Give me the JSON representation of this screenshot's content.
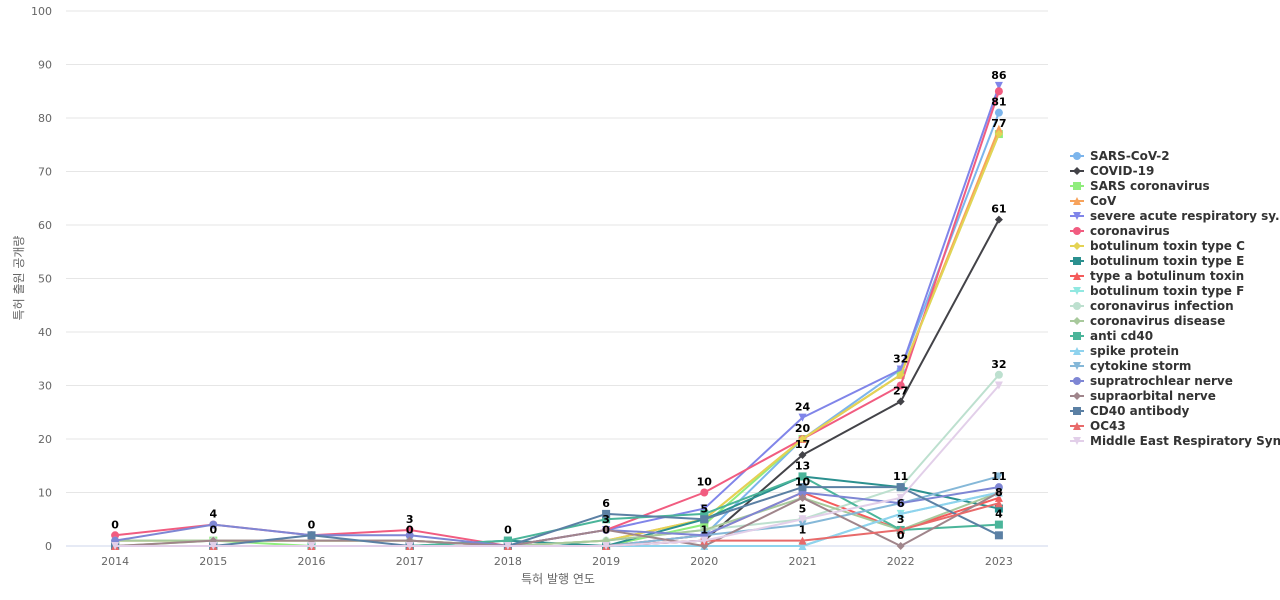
{
  "chart_data": {
    "type": "line",
    "xlabel": "특허 발행 연도",
    "ylabel": "특허 출원 공개량",
    "ylim": [
      0,
      100
    ],
    "yticks": [
      0,
      10,
      20,
      30,
      40,
      50,
      60,
      70,
      80,
      90,
      100
    ],
    "categories": [
      "2014",
      "2015",
      "2016",
      "2017",
      "2018",
      "2019",
      "2020",
      "2021",
      "2022",
      "2023"
    ],
    "grid": true,
    "legend": "right",
    "series": [
      {
        "name": "SARS-CoV-2",
        "color": "#7cb5ec",
        "marker": "circle",
        "values": [
          0,
          0,
          0,
          0,
          0,
          0,
          2,
          20,
          33,
          81
        ]
      },
      {
        "name": "COVID-19",
        "color": "#434348",
        "marker": "diamond",
        "values": [
          0,
          0,
          0,
          0,
          0,
          0,
          1,
          17,
          27,
          61
        ]
      },
      {
        "name": "SARS coronavirus",
        "color": "#90ed7d",
        "marker": "square",
        "values": [
          0,
          1,
          0,
          0,
          0,
          0,
          4,
          20,
          32,
          77
        ]
      },
      {
        "name": "CoV",
        "color": "#f7a35c",
        "marker": "triangle",
        "values": [
          1,
          1,
          1,
          1,
          0,
          1,
          5,
          20,
          32,
          78
        ]
      },
      {
        "name": "severe acute respiratory sy...",
        "color": "#8085e9",
        "marker": "triangle-down",
        "values": [
          0,
          0,
          0,
          0,
          0,
          3,
          7,
          24,
          33,
          86
        ]
      },
      {
        "name": "coronavirus",
        "color": "#f15c80",
        "marker": "circle",
        "values": [
          2,
          4,
          2,
          3,
          0,
          3,
          10,
          20,
          30,
          85
        ]
      },
      {
        "name": "botulinum toxin type C",
        "color": "#e4d354",
        "marker": "diamond",
        "values": [
          1,
          1,
          1,
          1,
          0,
          1,
          5,
          20,
          32,
          77
        ]
      },
      {
        "name": "botulinum toxin type E",
        "color": "#2b908f",
        "marker": "square",
        "values": [
          0,
          0,
          0,
          0,
          1,
          0,
          5,
          13,
          11,
          7
        ]
      },
      {
        "name": "type a botulinum toxin",
        "color": "#f45b5b",
        "marker": "triangle",
        "values": [
          0,
          0,
          0,
          0,
          0,
          0,
          2,
          10,
          3,
          9
        ]
      },
      {
        "name": "botulinum toxin type F",
        "color": "#91e8e1",
        "marker": "triangle-down",
        "values": [
          0,
          0,
          0,
          0,
          0,
          0,
          0,
          0,
          6,
          10
        ]
      },
      {
        "name": "coronavirus infection",
        "color": "#bde0cf",
        "marker": "circle",
        "values": [
          1,
          1,
          1,
          1,
          0,
          1,
          3,
          5,
          11,
          32
        ]
      },
      {
        "name": "coronavirus disease",
        "color": "#a8c99c",
        "marker": "diamond",
        "values": [
          1,
          1,
          1,
          1,
          0,
          1,
          3,
          9,
          3,
          10
        ]
      },
      {
        "name": "anti cd40",
        "color": "#4bb59a",
        "marker": "square",
        "values": [
          0,
          0,
          0,
          0,
          1,
          5,
          6,
          13,
          3,
          4
        ]
      },
      {
        "name": "spike protein",
        "color": "#8fd3ee",
        "marker": "triangle",
        "values": [
          0,
          0,
          0,
          0,
          0,
          0,
          0,
          0,
          6,
          10
        ]
      },
      {
        "name": "cytokine storm",
        "color": "#85b8d8",
        "marker": "triangle-down",
        "values": [
          0,
          0,
          0,
          0,
          0,
          0,
          2,
          4,
          8,
          13
        ]
      },
      {
        "name": "supratrochlear nerve",
        "color": "#7e86d4",
        "marker": "circle",
        "values": [
          1,
          4,
          2,
          2,
          0,
          3,
          2,
          10,
          8,
          11
        ]
      },
      {
        "name": "supraorbital nerve",
        "color": "#a0858b",
        "marker": "diamond",
        "values": [
          0,
          1,
          1,
          1,
          0,
          3,
          0,
          9,
          0,
          10
        ]
      },
      {
        "name": "CD40 antibody",
        "color": "#5b80a4",
        "marker": "square",
        "values": [
          0,
          0,
          2,
          0,
          0,
          6,
          5,
          11,
          11,
          2
        ]
      },
      {
        "name": "OC43",
        "color": "#e86a6a",
        "marker": "triangle",
        "values": [
          0,
          0,
          0,
          0,
          0,
          0,
          1,
          1,
          3,
          8
        ]
      },
      {
        "name": "Middle East Respiratory Syn...",
        "color": "#e2cfe9",
        "marker": "triangle-down",
        "values": [
          0,
          0,
          0,
          0,
          0,
          0,
          1,
          5,
          9,
          30
        ]
      }
    ],
    "data_labels": [
      {
        "x": "2014",
        "y": 2,
        "text": "0"
      },
      {
        "x": "2015",
        "y": 4,
        "text": "4"
      },
      {
        "x": "2015",
        "y": 1,
        "text": "0"
      },
      {
        "x": "2016",
        "y": 2,
        "text": "0"
      },
      {
        "x": "2017",
        "y": 3,
        "text": "3"
      },
      {
        "x": "2017",
        "y": 1,
        "text": "0"
      },
      {
        "x": "2018",
        "y": 1,
        "text": "0"
      },
      {
        "x": "2019",
        "y": 6,
        "text": "6"
      },
      {
        "x": "2019",
        "y": 3,
        "text": "3"
      },
      {
        "x": "2019",
        "y": 1,
        "text": "0"
      },
      {
        "x": "2020",
        "y": 10,
        "text": "10"
      },
      {
        "x": "2020",
        "y": 5,
        "text": "5"
      },
      {
        "x": "2020",
        "y": 1,
        "text": "1"
      },
      {
        "x": "2021",
        "y": 24,
        "text": "24"
      },
      {
        "x": "2021",
        "y": 20,
        "text": "20"
      },
      {
        "x": "2021",
        "y": 17,
        "text": "17"
      },
      {
        "x": "2021",
        "y": 13,
        "text": "13"
      },
      {
        "x": "2021",
        "y": 10,
        "text": "10"
      },
      {
        "x": "2021",
        "y": 5,
        "text": "5"
      },
      {
        "x": "2021",
        "y": 1,
        "text": "1"
      },
      {
        "x": "2022",
        "y": 33,
        "text": "32"
      },
      {
        "x": "2022",
        "y": 27,
        "text": "27"
      },
      {
        "x": "2022",
        "y": 11,
        "text": "11"
      },
      {
        "x": "2022",
        "y": 6,
        "text": "6"
      },
      {
        "x": "2022",
        "y": 3,
        "text": "3"
      },
      {
        "x": "2022",
        "y": 0,
        "text": "0"
      },
      {
        "x": "2023",
        "y": 86,
        "text": "86"
      },
      {
        "x": "2023",
        "y": 81,
        "text": "81"
      },
      {
        "x": "2023",
        "y": 77,
        "text": "77"
      },
      {
        "x": "2023",
        "y": 61,
        "text": "61"
      },
      {
        "x": "2023",
        "y": 32,
        "text": "32"
      },
      {
        "x": "2023",
        "y": 11,
        "text": "11"
      },
      {
        "x": "2023",
        "y": 8,
        "text": "8"
      },
      {
        "x": "2023",
        "y": 4,
        "text": "4"
      }
    ]
  }
}
